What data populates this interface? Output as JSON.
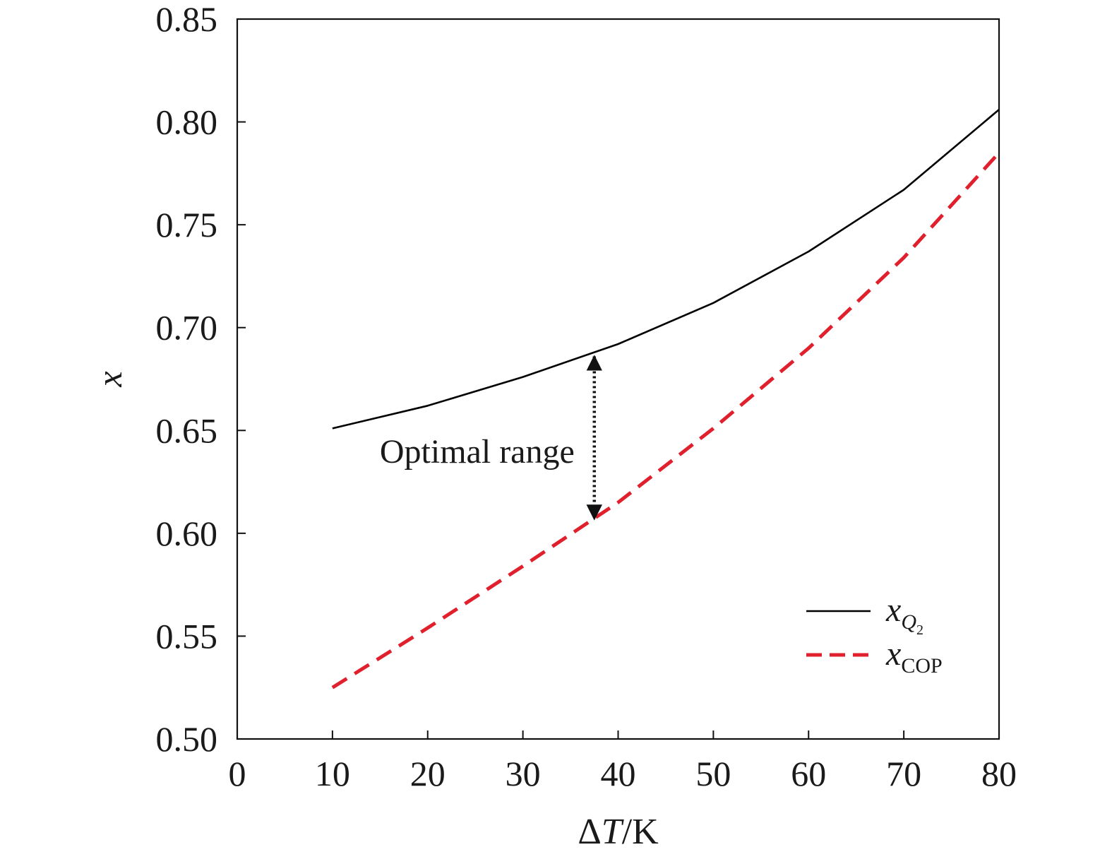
{
  "chart_data": {
    "type": "line",
    "xlabel": {
      "prefix": "Δ",
      "var": "T",
      "suffix": "/K"
    },
    "ylabel": "x",
    "xlim": [
      0,
      80
    ],
    "ylim": [
      0.5,
      0.85
    ],
    "xticks": [
      0,
      10,
      20,
      30,
      40,
      50,
      60,
      70,
      80
    ],
    "yticks": [
      "0.50",
      "0.55",
      "0.60",
      "0.65",
      "0.70",
      "0.75",
      "0.80",
      "0.85"
    ],
    "grid": false,
    "legend_position": "bottom-right",
    "series": [
      {
        "name": {
          "base": "x",
          "sub": "Q",
          "subsub": "2"
        },
        "style": "solid",
        "color": "#000000",
        "x": [
          10,
          20,
          30,
          40,
          50,
          60,
          70,
          80
        ],
        "y": [
          0.651,
          0.662,
          0.676,
          0.692,
          0.712,
          0.737,
          0.767,
          0.806
        ]
      },
      {
        "name": {
          "base": "x",
          "sub": "COP",
          "subsub": ""
        },
        "style": "dashed",
        "color": "#e0202c",
        "x": [
          10,
          20,
          30,
          40,
          50,
          60,
          70,
          80
        ],
        "y": [
          0.525,
          0.554,
          0.584,
          0.615,
          0.651,
          0.69,
          0.734,
          0.785
        ]
      }
    ],
    "annotations": [
      {
        "text": "Optimal range",
        "arrow_x": 37.5,
        "arrow_y_from": 0.686,
        "arrow_y_to": 0.607
      }
    ]
  }
}
